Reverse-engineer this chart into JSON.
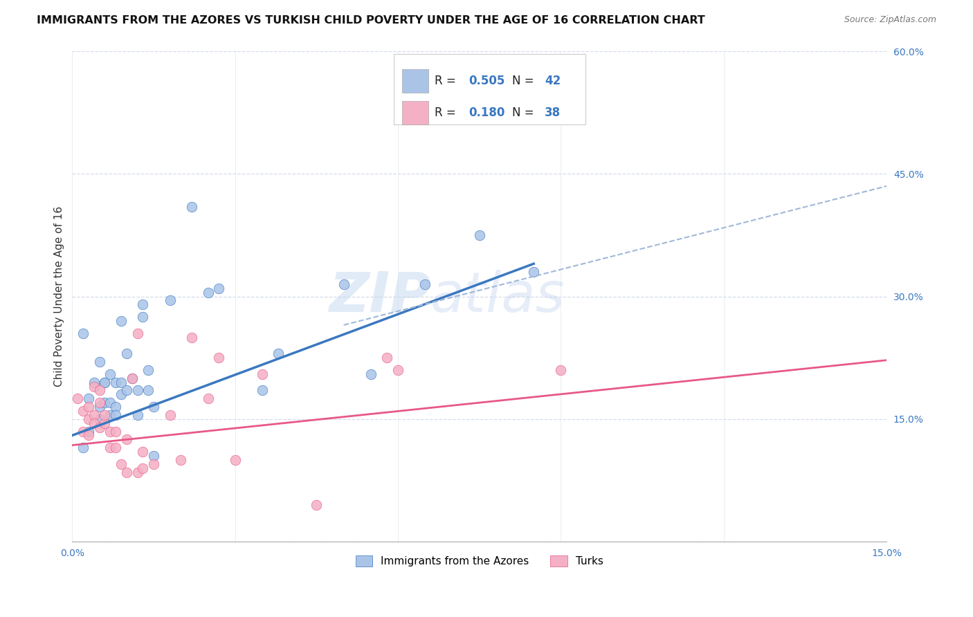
{
  "title": "IMMIGRANTS FROM THE AZORES VS TURKISH CHILD POVERTY UNDER THE AGE OF 16 CORRELATION CHART",
  "source": "Source: ZipAtlas.com",
  "ylabel": "Child Poverty Under the Age of 16",
  "xlim": [
    0.0,
    0.15
  ],
  "ylim": [
    0.0,
    0.6
  ],
  "yticks": [
    0.0,
    0.15,
    0.3,
    0.45,
    0.6
  ],
  "blue_R": 0.505,
  "blue_N": 42,
  "pink_R": 0.18,
  "pink_N": 38,
  "blue_scatter_color": "#aac4e8",
  "pink_scatter_color": "#f4b0c4",
  "blue_line_color": "#3a78c0",
  "pink_line_color": "#e85888",
  "dashed_line_color": "#a0b8d8",
  "legend_label_blue": "Immigrants from the Azores",
  "legend_label_pink": "Turks",
  "watermark_text": "ZIP",
  "watermark_text2": "atlas",
  "blue_scatter_x": [
    0.002,
    0.003,
    0.003,
    0.004,
    0.005,
    0.005,
    0.005,
    0.006,
    0.006,
    0.006,
    0.007,
    0.007,
    0.007,
    0.008,
    0.008,
    0.008,
    0.009,
    0.009,
    0.009,
    0.01,
    0.01,
    0.011,
    0.012,
    0.012,
    0.013,
    0.013,
    0.014,
    0.014,
    0.015,
    0.015,
    0.002,
    0.018,
    0.022,
    0.025,
    0.027,
    0.035,
    0.038,
    0.05,
    0.055,
    0.065,
    0.075,
    0.085
  ],
  "blue_scatter_y": [
    0.115,
    0.135,
    0.175,
    0.195,
    0.22,
    0.165,
    0.15,
    0.195,
    0.17,
    0.195,
    0.205,
    0.155,
    0.17,
    0.165,
    0.155,
    0.195,
    0.195,
    0.18,
    0.27,
    0.185,
    0.23,
    0.2,
    0.155,
    0.185,
    0.275,
    0.29,
    0.21,
    0.185,
    0.165,
    0.105,
    0.255,
    0.295,
    0.41,
    0.305,
    0.31,
    0.185,
    0.23,
    0.315,
    0.205,
    0.315,
    0.375,
    0.33
  ],
  "pink_scatter_x": [
    0.001,
    0.002,
    0.002,
    0.003,
    0.003,
    0.003,
    0.004,
    0.004,
    0.004,
    0.005,
    0.005,
    0.005,
    0.006,
    0.006,
    0.007,
    0.007,
    0.008,
    0.008,
    0.009,
    0.01,
    0.01,
    0.011,
    0.012,
    0.012,
    0.013,
    0.013,
    0.015,
    0.018,
    0.02,
    0.022,
    0.025,
    0.027,
    0.03,
    0.035,
    0.045,
    0.058,
    0.06,
    0.09
  ],
  "pink_scatter_y": [
    0.175,
    0.135,
    0.16,
    0.13,
    0.15,
    0.165,
    0.155,
    0.145,
    0.19,
    0.17,
    0.14,
    0.185,
    0.145,
    0.155,
    0.135,
    0.115,
    0.135,
    0.115,
    0.095,
    0.125,
    0.085,
    0.2,
    0.255,
    0.085,
    0.11,
    0.09,
    0.095,
    0.155,
    0.1,
    0.25,
    0.175,
    0.225,
    0.1,
    0.205,
    0.045,
    0.225,
    0.21,
    0.21
  ],
  "blue_line_x": [
    0.0,
    0.085
  ],
  "blue_line_y": [
    0.13,
    0.34
  ],
  "dashed_line_x": [
    0.05,
    0.15
  ],
  "dashed_line_y": [
    0.265,
    0.435
  ],
  "pink_line_x": [
    0.0,
    0.15
  ],
  "pink_line_y": [
    0.118,
    0.222
  ],
  "background_color": "#ffffff",
  "grid_color": "#d4dce8",
  "title_fontsize": 11.5,
  "source_fontsize": 9,
  "tick_fontsize": 10,
  "ylabel_fontsize": 11
}
